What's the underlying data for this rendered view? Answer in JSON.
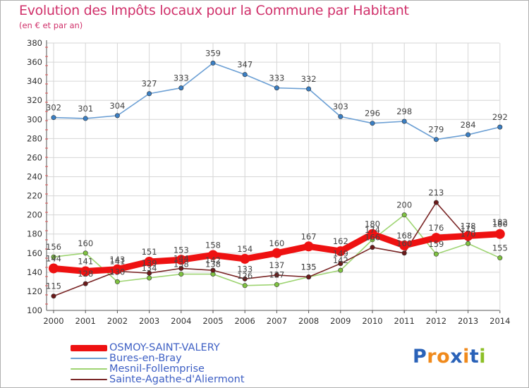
{
  "title": "Evolution des Impôts locaux pour la Commune par Habitant",
  "subtitle": "(en € et par an)",
  "logo": {
    "letters": [
      "P",
      "r",
      "o",
      "x",
      "i",
      "t",
      "i"
    ],
    "colors": [
      "#2a62b8",
      "#f08a1c",
      "#f08a1c",
      "#2a62b8",
      "#f08a1c",
      "#2a62b8",
      "#8cbf26"
    ]
  },
  "colors": {
    "grid": "#d6d6d6",
    "axis": "#555555",
    "tick_text": "#333333",
    "label_text": "#444444"
  },
  "chart_data": {
    "type": "line",
    "title": "Evolution des Impôts locaux pour la Commune par Habitant",
    "subtitle": "(en € et par an)",
    "xlabel": "",
    "ylabel": "",
    "x": [
      "2000",
      "2001",
      "2002",
      "2003",
      "2004",
      "2005",
      "2006",
      "2007",
      "2008",
      "2009",
      "2010",
      "2011",
      "2012",
      "2013",
      "2014"
    ],
    "ylim": [
      100,
      380
    ],
    "yticks": [
      100,
      120,
      140,
      160,
      180,
      200,
      220,
      240,
      260,
      280,
      300,
      320,
      340,
      360,
      380
    ],
    "grid": true,
    "legend": "bottom-left",
    "series": [
      {
        "name": "OSMOY-SAINT-VALERY",
        "color": "#ee1111",
        "marker": "#ee1111",
        "values": [
          144,
          141,
          143,
          151,
          153,
          158,
          154,
          160,
          167,
          162,
          180,
          168,
          176,
          178,
          180
        ],
        "labels": [
          "144",
          "141",
          "143",
          "151",
          "153",
          "158",
          "154",
          "160",
          "167",
          "162",
          "180",
          "168",
          "176",
          "178",
          "180"
        ]
      },
      {
        "name": "Bures-en-Bray",
        "color": "#6b9fd4",
        "marker": "#3a7fc4",
        "values": [
          302,
          301,
          304,
          327,
          333,
          359,
          347,
          333,
          332,
          303,
          296,
          298,
          279,
          284,
          292
        ],
        "labels": [
          "302",
          "301",
          "304",
          "327",
          "333",
          "359",
          "347",
          "333",
          "332",
          "303",
          "296",
          "298",
          "279",
          "284",
          "292"
        ]
      },
      {
        "name": "Mesnil-Follemprise",
        "color": "#9ed472",
        "marker": "#7fc241",
        "values": [
          156,
          160,
          130,
          134,
          138,
          138,
          126,
          127,
          135,
          142,
          174,
          200,
          159,
          170,
          155
        ],
        "labels": [
          "156",
          "160",
          "130",
          "134",
          "138",
          "138",
          "126",
          "127",
          "135",
          "142",
          "174",
          "200",
          "159",
          "170",
          "155"
        ]
      },
      {
        "name": "Sainte-Agathe-d'Aliermont",
        "color": "#7a2626",
        "marker": "#6b1a1a",
        "values": [
          115,
          128,
          141,
          139,
          144,
          142,
          133,
          137,
          135,
          149,
          166,
          160,
          213,
          175,
          182
        ],
        "labels": [
          "115",
          "128",
          "141",
          "139",
          "144",
          "142",
          "133",
          "137",
          "135",
          "149",
          "166",
          "160",
          "213",
          "175",
          "182"
        ]
      }
    ]
  }
}
